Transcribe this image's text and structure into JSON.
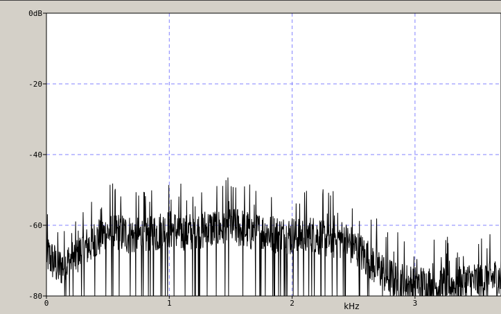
{
  "chart_data": {
    "type": "line",
    "title": "",
    "xlabel": "kHz",
    "ylabel": "",
    "xlim": [
      0,
      3.7
    ],
    "ylim": [
      -80,
      0
    ],
    "x_ticks": [
      {
        "value": 0,
        "label": "0"
      },
      {
        "value": 1,
        "label": "1"
      },
      {
        "value": 2,
        "label": "2"
      },
      {
        "value": 3,
        "label": "3"
      }
    ],
    "y_ticks": [
      {
        "value": 0,
        "label": "0dB"
      },
      {
        "value": -20,
        "label": "-20"
      },
      {
        "value": -40,
        "label": "-40"
      },
      {
        "value": -60,
        "label": "-60"
      },
      {
        "value": -80,
        "label": "-80"
      }
    ],
    "grid": true,
    "grid_style": "dashed",
    "colors": {
      "line": "#000000",
      "grid": "#8080ff",
      "plot_bg": "#ffffff",
      "frame_bg": "#d4d0c8"
    },
    "series": [
      {
        "x": [
          0,
          0.1,
          0.2,
          0.3,
          0.4,
          0.5,
          0.6,
          0.7,
          0.8,
          0.9,
          1.0,
          1.1,
          1.2,
          1.3,
          1.4,
          1.5,
          1.6,
          1.7,
          1.8,
          1.9,
          2.0,
          2.1,
          2.2,
          2.3,
          2.4,
          2.5,
          2.6,
          2.7,
          2.8,
          2.9,
          3.0,
          3.1,
          3.2,
          3.3,
          3.4,
          3.5,
          3.6,
          3.7
        ],
        "y": [
          -68,
          -72,
          -70,
          -67,
          -64,
          -62,
          -62,
          -63,
          -63,
          -62,
          -61,
          -62,
          -62,
          -61,
          -61,
          -60,
          -61,
          -62,
          -62,
          -63,
          -63,
          -63,
          -63,
          -64,
          -64,
          -66,
          -69,
          -72,
          -75,
          -76,
          -77,
          -77,
          -77,
          -77,
          -76,
          -76,
          -75,
          -75
        ]
      }
    ]
  }
}
